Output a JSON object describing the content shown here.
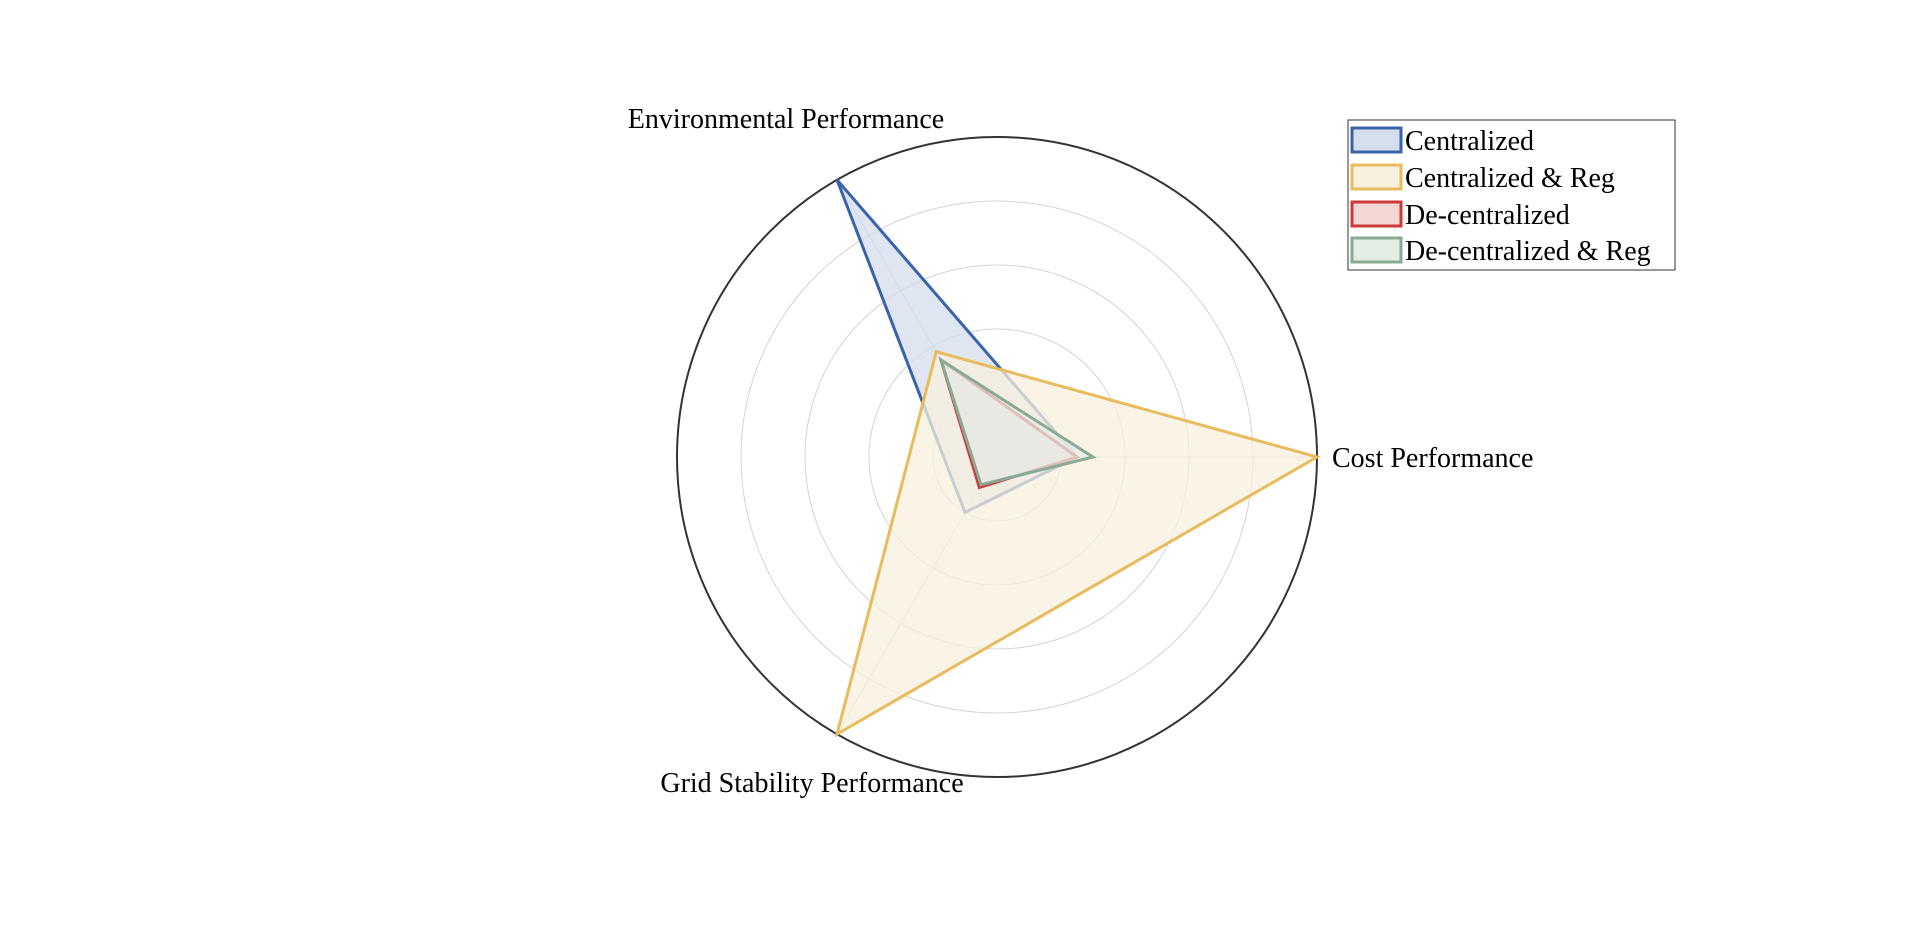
{
  "chart_data": {
    "type": "radar",
    "axes": [
      "Cost Performance",
      "Environmental Performance",
      "Grid Stability Performance"
    ],
    "rmax": 1.0,
    "rings": [
      0.2,
      0.4,
      0.6,
      0.8,
      1.0
    ],
    "grid": true,
    "legend_position": "top-right",
    "series": [
      {
        "name": "Centralized",
        "values": [
          0.25,
          1.0,
          0.2
        ],
        "color": "#3a63a8",
        "fill": "#d5deec"
      },
      {
        "name": "Centralized & Reg",
        "values": [
          1.0,
          0.38,
          1.0
        ],
        "color": "#e8bc5e",
        "fill": "#f8f0df"
      },
      {
        "name": "De-centralized",
        "values": [
          0.25,
          0.35,
          0.11
        ],
        "color": "#cc3a3a",
        "fill": "#f2d8d4"
      },
      {
        "name": "De-centralized & Reg",
        "values": [
          0.3,
          0.35,
          0.1
        ],
        "color": "#8aaa96",
        "fill": "#e4ece6"
      }
    ]
  }
}
